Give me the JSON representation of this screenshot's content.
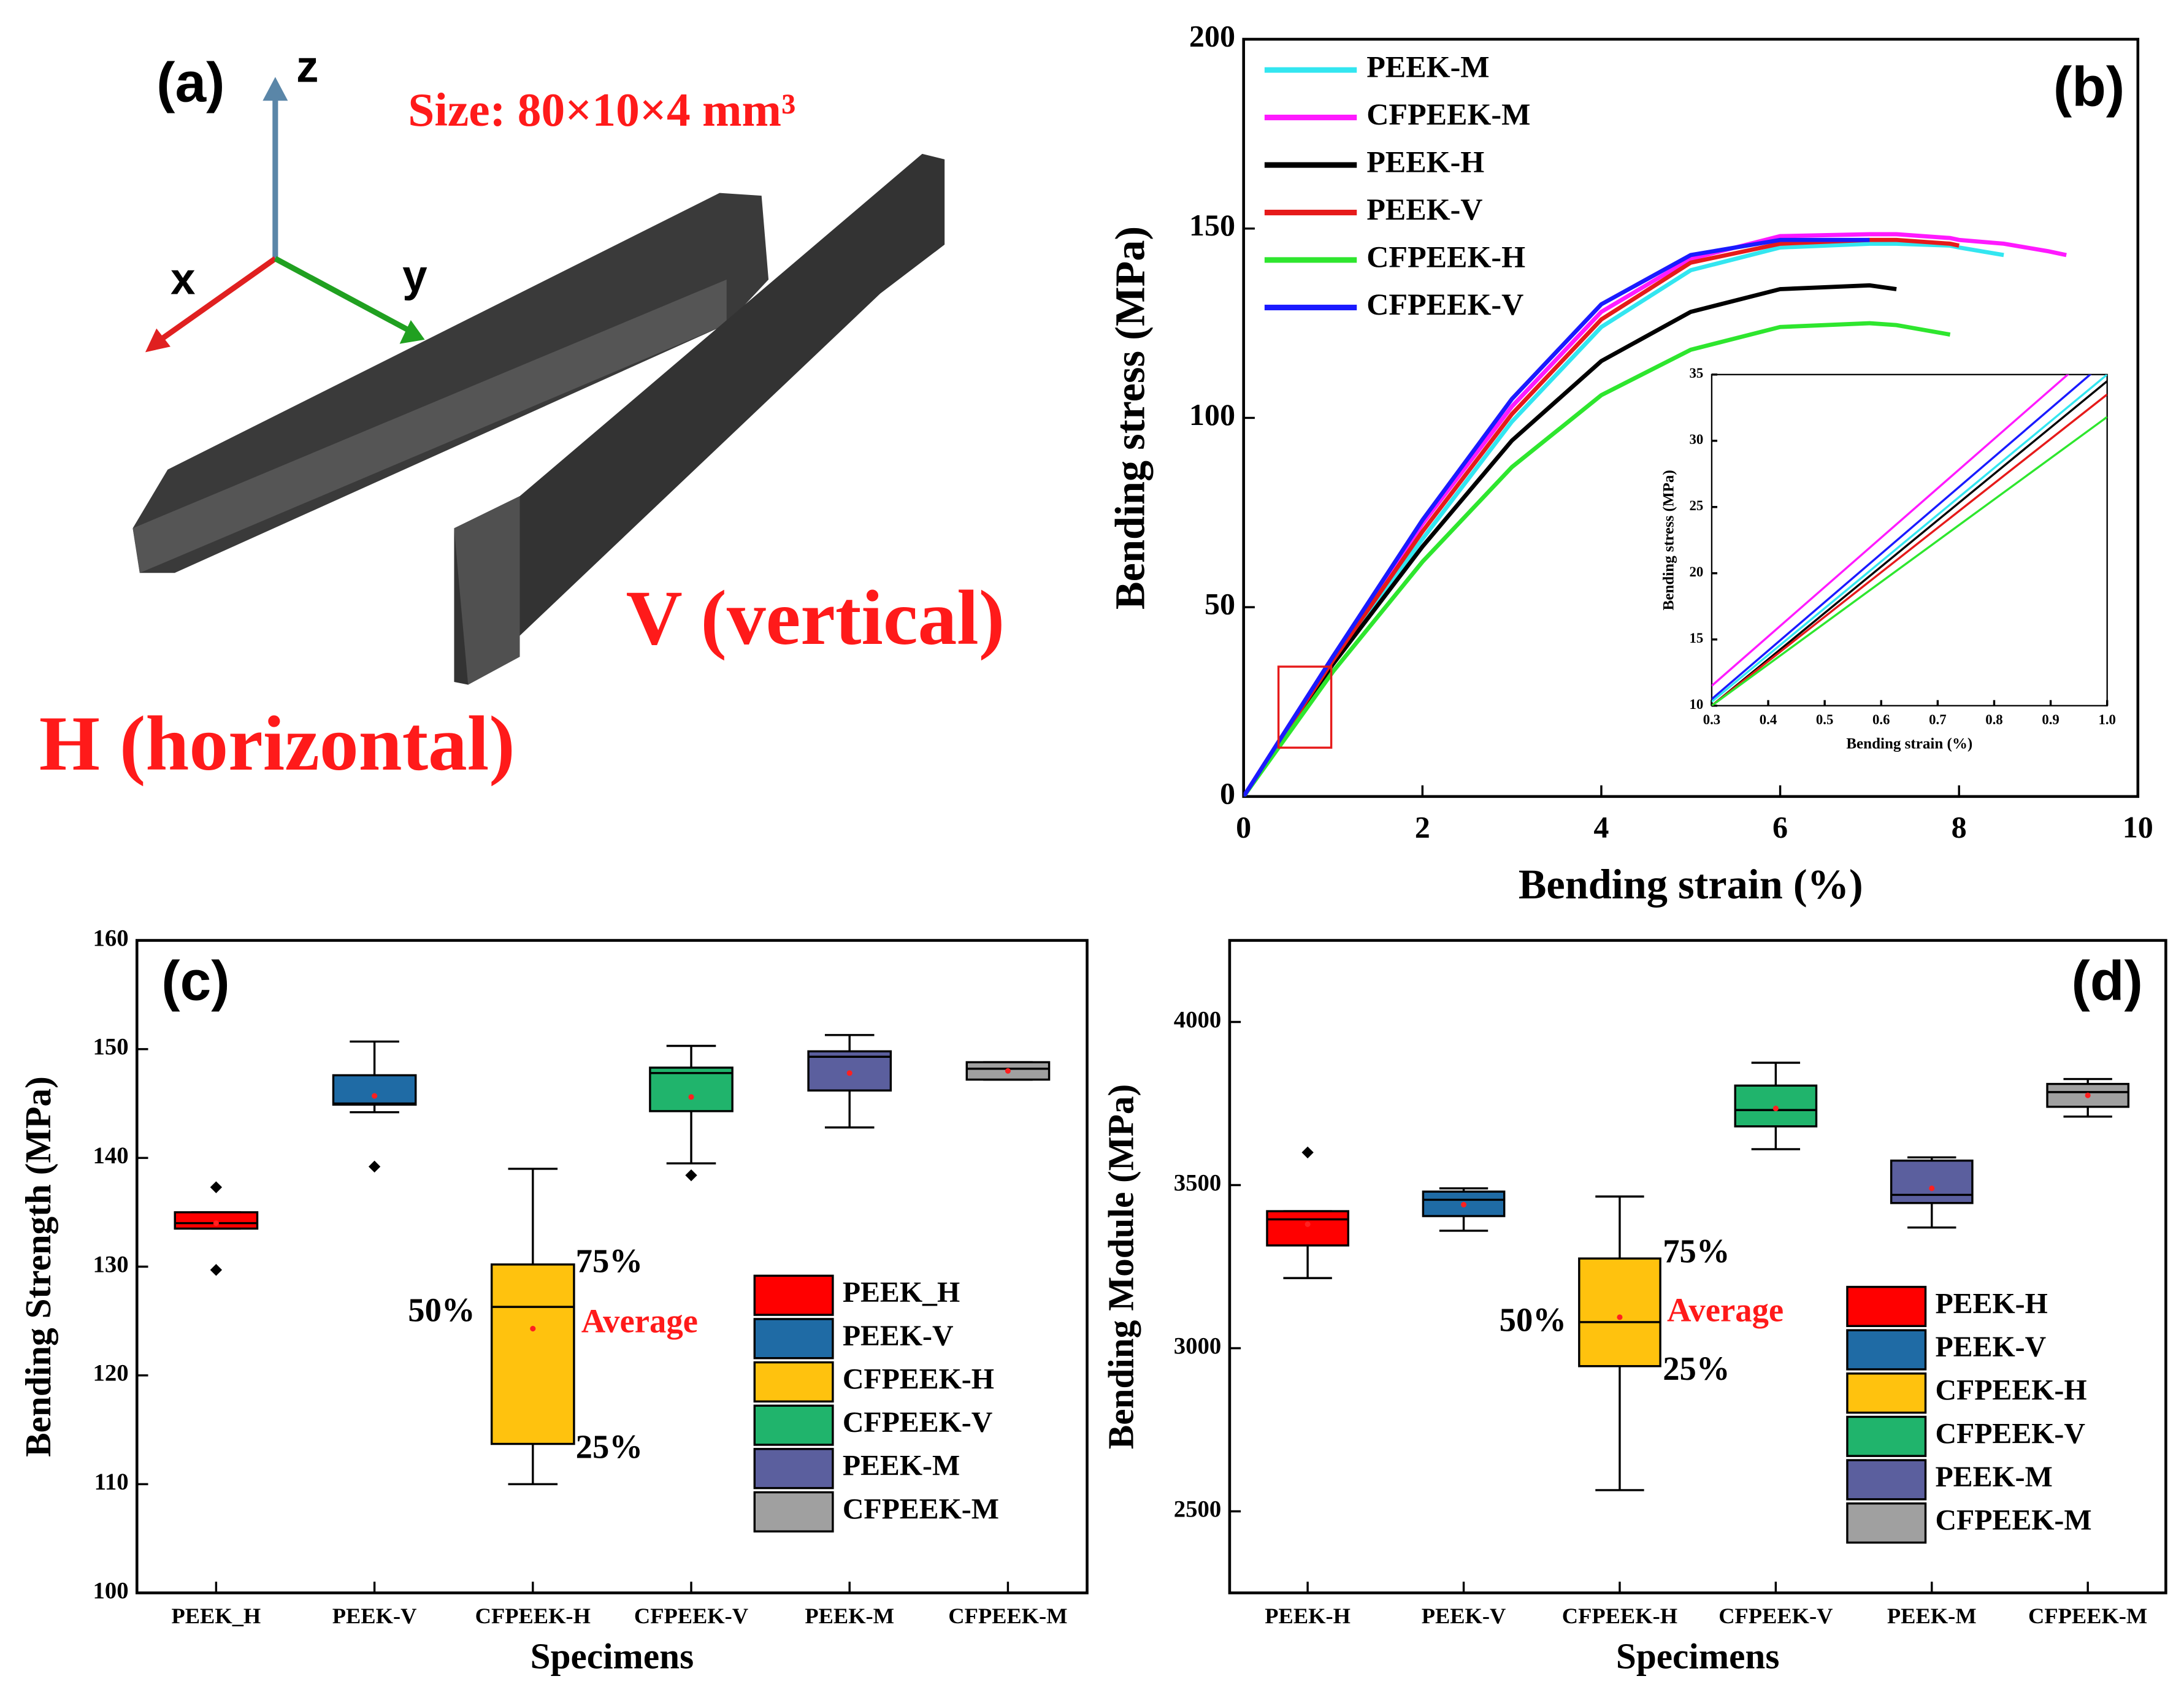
{
  "panel_a": {
    "panel_label": "(a)",
    "axes": [
      "z",
      "x",
      "y"
    ],
    "size_text": "Size: 80×10×4 mm³",
    "label_v": "V (vertical)",
    "label_h": "H (horizontal)"
  },
  "chart_data": [
    {
      "type": "line",
      "panel_label": "(b)",
      "xlabel": "Bending strain (%)",
      "ylabel": "Bending stress (MPa)",
      "xlim": [
        0,
        10
      ],
      "ylim": [
        0,
        200
      ],
      "xticks": [
        0,
        2,
        4,
        6,
        8,
        10
      ],
      "yticks": [
        0,
        50,
        100,
        150,
        200
      ],
      "legend": "top-left",
      "x": [
        0,
        1,
        2,
        3,
        4,
        5,
        6,
        7,
        7.3,
        7.9,
        8,
        8.5,
        9,
        9.2
      ],
      "series": [
        {
          "name": "PEEK-M",
          "color": "#33e6f0",
          "values": [
            0,
            35,
            68,
            99,
            124,
            139,
            145,
            146,
            146,
            145.5,
            145,
            143,
            null,
            null
          ]
        },
        {
          "name": "CFPEEK-M",
          "color": "#ff1aff",
          "values": [
            0,
            37,
            72,
            103,
            128,
            142,
            148,
            148.5,
            148.5,
            147.5,
            147,
            146,
            144,
            143
          ]
        },
        {
          "name": "PEEK-H",
          "color": "#000000",
          "values": [
            0,
            35,
            66,
            94,
            115,
            128,
            134,
            135,
            134,
            null,
            null,
            null,
            null,
            null
          ]
        },
        {
          "name": "PEEK-V",
          "color": "#e61a1a",
          "values": [
            0,
            36,
            70,
            101,
            126,
            141,
            146,
            147,
            147,
            146,
            145.5,
            null,
            null,
            null
          ]
        },
        {
          "name": "CFPEEK-H",
          "color": "#2ee62e",
          "values": [
            0,
            33,
            62,
            87,
            106,
            118,
            124,
            125,
            124.5,
            122,
            null,
            null,
            null,
            null
          ]
        },
        {
          "name": "CFPEEK-V",
          "color": "#1a1aff",
          "values": [
            0,
            37,
            73,
            105,
            130,
            143,
            147,
            147,
            null,
            null,
            null,
            null,
            null,
            null
          ]
        }
      ],
      "zoom_box": {
        "xlim": [
          0.39,
          0.98
        ],
        "ylim": [
          12.9,
          34.3
        ],
        "color": "#e61a1a"
      }
    },
    {
      "type": "line",
      "xlabel": "Bending strain (%)",
      "ylabel": "Bending stress (MPa)",
      "xlim": [
        0.3,
        1
      ],
      "ylim": [
        10,
        35
      ],
      "xticks": [
        0.3,
        0.4,
        0.5,
        0.6,
        0.7,
        0.8,
        0.9,
        {
          "value": 1,
          "label": "1.0"
        }
      ],
      "yticks": [
        10,
        15,
        20,
        25,
        30,
        35
      ],
      "x": [
        0.3,
        1
      ],
      "series": [
        {
          "color": "#33e6f0",
          "values": [
            10.3,
            35
          ]
        },
        {
          "color": "#ff1aff",
          "values": [
            11.5,
            37.6
          ]
        },
        {
          "color": "#000000",
          "values": [
            10,
            34.5
          ]
        },
        {
          "color": "#e61a1a",
          "values": [
            10,
            33.5
          ]
        },
        {
          "color": "#2ee62e",
          "values": [
            10,
            31.8
          ]
        },
        {
          "color": "#1a1aff",
          "values": [
            10.5,
            36.1
          ]
        }
      ]
    },
    {
      "type": "box",
      "panel_label": "(c)",
      "xlabel": "Specimens",
      "ylabel": "Bending Strength (MPa)",
      "ylim": [
        100,
        160
      ],
      "yticks": [
        100,
        110,
        120,
        130,
        140,
        150,
        160
      ],
      "categories": [
        "PEEK_H",
        "PEEK-V",
        "CFPEEK-H",
        "CFPEEK-V",
        "PEEK-M",
        "CFPEEK-M"
      ],
      "colors": [
        "#ff0000",
        "#1f6ba5",
        "#ffc20e",
        "#20b46c",
        "#5b5f9e",
        "#a0a0a0"
      ],
      "boxes": [
        {
          "whisker_low": 133.5,
          "q1": 133.5,
          "median": 134,
          "q3": 135,
          "whisker_high": 135,
          "mean": 134,
          "outliers": [
            137.3,
            129.7
          ]
        },
        {
          "whisker_low": 144.2,
          "q1": 144.9,
          "median": 145,
          "q3": 147.6,
          "whisker_high": 150.7,
          "mean": 145.7,
          "outliers": [
            139.2
          ]
        },
        {
          "whisker_low": 110,
          "q1": 113.7,
          "median": 126.3,
          "q3": 130.2,
          "whisker_high": 139,
          "mean": 124.3,
          "outliers": []
        },
        {
          "whisker_low": 139.5,
          "q1": 144.3,
          "median": 147.8,
          "q3": 148.3,
          "whisker_high": 150.3,
          "mean": 145.6,
          "outliers": [
            138.4
          ]
        },
        {
          "whisker_low": 142.8,
          "q1": 146.2,
          "median": 149.3,
          "q3": 149.8,
          "whisker_high": 151.3,
          "mean": 147.8,
          "outliers": []
        },
        {
          "whisker_low": 147.2,
          "q1": 147.2,
          "median": 148.2,
          "q3": 148.8,
          "whisker_high": 148.8,
          "mean": 148,
          "outliers": []
        }
      ],
      "annotations": [
        "75%",
        "50%",
        "Average",
        "25%"
      ]
    },
    {
      "type": "box",
      "panel_label": "(d)",
      "xlabel": "Specimens",
      "ylabel": "Bending Module (MPa)",
      "ylim": [
        2250,
        4250
      ],
      "yticks": [
        2500,
        3000,
        3500,
        4000
      ],
      "categories": [
        "PEEK-H",
        "PEEK-V",
        "CFPEEK-H",
        "CFPEEK-V",
        "PEEK-M",
        "CFPEEK-M"
      ],
      "colors": [
        "#ff0000",
        "#1f6ba5",
        "#ffc20e",
        "#20b46c",
        "#5b5f9e",
        "#a0a0a0"
      ],
      "boxes": [
        {
          "whisker_low": 3215,
          "q1": 3315,
          "median": 3395,
          "q3": 3420,
          "whisker_high": 3420,
          "mean": 3380,
          "outliers": [
            3600
          ]
        },
        {
          "whisker_low": 3360,
          "q1": 3405,
          "median": 3455,
          "q3": 3480,
          "whisker_high": 3490,
          "mean": 3440,
          "outliers": []
        },
        {
          "whisker_low": 2565,
          "q1": 2945,
          "median": 3080,
          "q3": 3275,
          "whisker_high": 3465,
          "mean": 3095,
          "outliers": []
        },
        {
          "whisker_low": 3610,
          "q1": 3680,
          "median": 3730,
          "q3": 3805,
          "whisker_high": 3875,
          "mean": 3735,
          "outliers": []
        },
        {
          "whisker_low": 3370,
          "q1": 3445,
          "median": 3470,
          "q3": 3575,
          "whisker_high": 3585,
          "mean": 3490,
          "outliers": []
        },
        {
          "whisker_low": 3710,
          "q1": 3740,
          "median": 3785,
          "q3": 3810,
          "whisker_high": 3825,
          "mean": 3775,
          "outliers": []
        }
      ],
      "annotations": [
        "75%",
        "50%",
        "Average",
        "25%"
      ]
    }
  ]
}
